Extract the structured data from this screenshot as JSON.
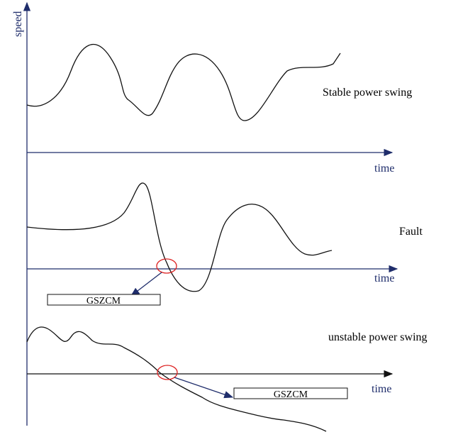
{
  "axis_label": "speed",
  "panels": [
    {
      "label": "Stable power swing",
      "time_label": "time"
    },
    {
      "label": "Fault",
      "time_label": "time",
      "box": "GSZCM"
    },
    {
      "label": "unstable power swing",
      "time_label": "time",
      "box": "GSZCM"
    }
  ]
}
